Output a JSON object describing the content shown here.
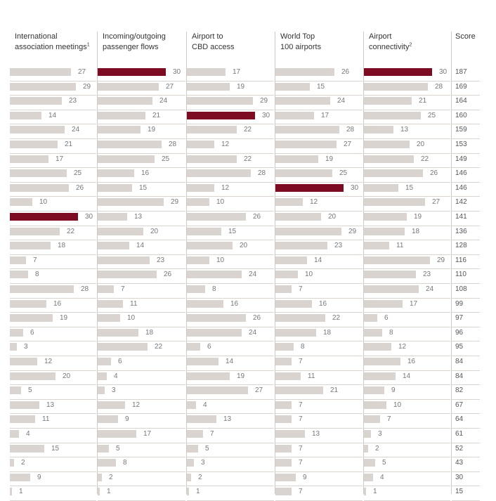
{
  "chart_data": {
    "type": "bar",
    "orientation": "horizontal",
    "max_value": 30,
    "highlight_value": 30,
    "colors": {
      "bar": "#d9d4d0",
      "highlight": "#7d0b22",
      "grid": "#d9d4d0"
    },
    "columns": [
      {
        "title_line1": "International",
        "title_line2": "association meetings",
        "footnote": "1",
        "values": [
          27,
          29,
          23,
          14,
          24,
          21,
          17,
          25,
          26,
          10,
          30,
          22,
          18,
          7,
          8,
          28,
          16,
          19,
          6,
          3,
          12,
          20,
          5,
          13,
          11,
          4,
          15,
          2,
          9,
          1
        ]
      },
      {
        "title_line1": "Incoming/outgoing",
        "title_line2": "passenger flows",
        "footnote": "",
        "values": [
          30,
          27,
          24,
          21,
          19,
          28,
          25,
          16,
          15,
          29,
          13,
          20,
          14,
          23,
          26,
          7,
          11,
          10,
          18,
          22,
          6,
          4,
          3,
          12,
          9,
          17,
          5,
          8,
          2,
          1
        ]
      },
      {
        "title_line1": "Airport to",
        "title_line2": "CBD access",
        "footnote": "",
        "values": [
          17,
          19,
          29,
          30,
          22,
          12,
          22,
          28,
          12,
          10,
          26,
          15,
          20,
          10,
          24,
          8,
          16,
          26,
          24,
          6,
          14,
          19,
          27,
          4,
          13,
          7,
          5,
          3,
          2,
          1
        ]
      },
      {
        "title_line1": "World Top",
        "title_line2": "100 airports",
        "footnote": "",
        "values": [
          26,
          15,
          24,
          17,
          28,
          27,
          19,
          25,
          30,
          12,
          20,
          29,
          23,
          14,
          10,
          7,
          16,
          22,
          18,
          8,
          7,
          11,
          21,
          7,
          7,
          13,
          7,
          7,
          9,
          7
        ]
      },
      {
        "title_line1": "Airport",
        "title_line2": "connectivity",
        "footnote": "2",
        "values": [
          30,
          28,
          21,
          25,
          13,
          20,
          22,
          26,
          15,
          27,
          19,
          18,
          11,
          29,
          23,
          24,
          17,
          6,
          8,
          12,
          16,
          14,
          9,
          10,
          7,
          3,
          2,
          5,
          4,
          1
        ]
      }
    ],
    "score_header": "Score",
    "scores": [
      187,
      169,
      164,
      160,
      159,
      153,
      149,
      146,
      146,
      142,
      141,
      136,
      128,
      116,
      110,
      108,
      99,
      97,
      96,
      95,
      84,
      84,
      82,
      67,
      64,
      61,
      52,
      43,
      30,
      15
    ]
  }
}
